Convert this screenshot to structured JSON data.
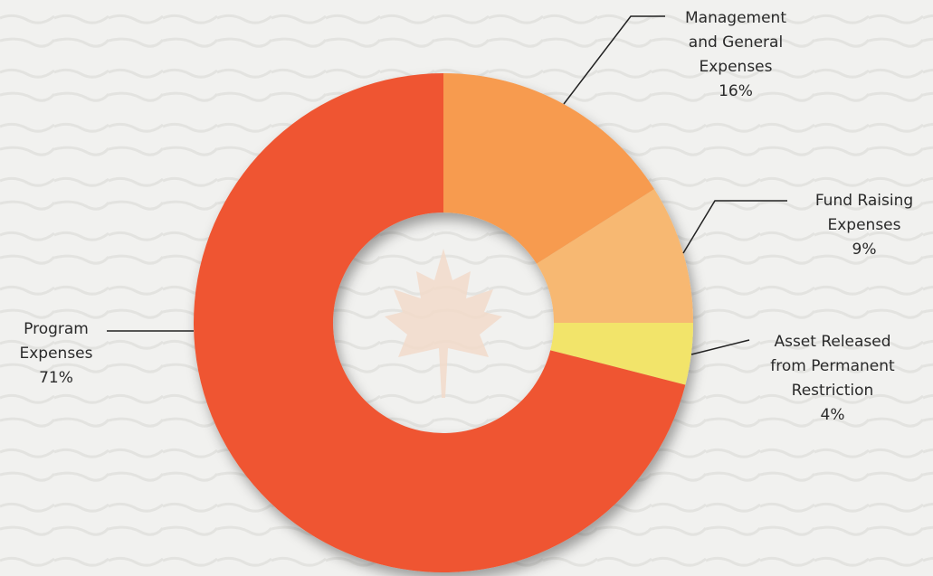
{
  "chart_data": {
    "type": "pie",
    "donut": true,
    "categories": [
      [
        "Management",
        "and General",
        "Expenses"
      ],
      [
        "Fund Raising",
        "Expenses"
      ],
      [
        "Asset Released",
        "from Permanent",
        "Restriction"
      ],
      [
        "Program",
        "Expenses"
      ]
    ],
    "values": [
      16,
      9,
      4,
      71
    ],
    "value_labels": [
      "16%",
      "9%",
      "4%",
      "71%"
    ],
    "colors": [
      "#f79b4f",
      "#f7b872",
      "#f2e46a",
      "#ef5530"
    ]
  }
}
